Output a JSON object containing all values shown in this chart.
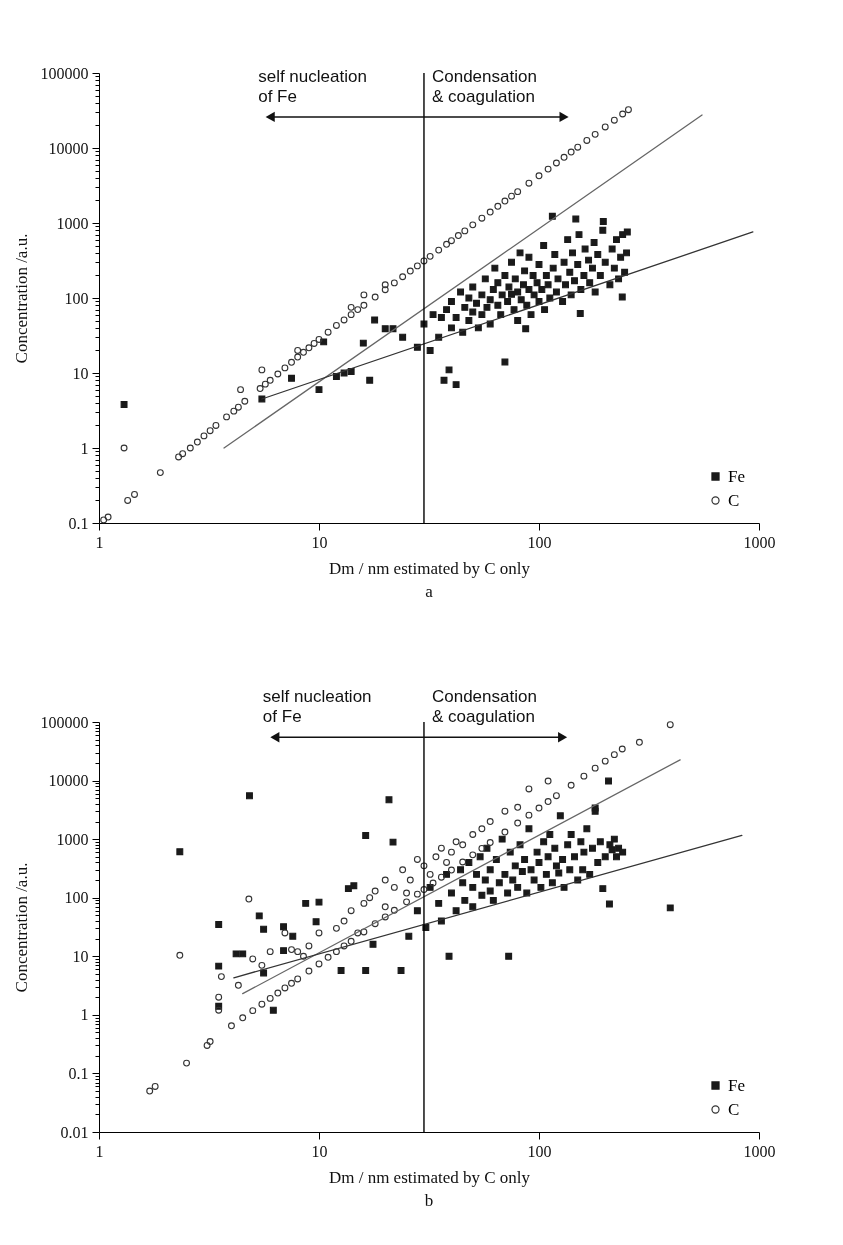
{
  "chart_data": [
    {
      "type": "scatter",
      "title": "a",
      "xlabel": "Dm / nm estimated by C only",
      "ylabel": "Concentration /a.u.",
      "log": "xy",
      "legend": "bottom right",
      "xlim": [
        1,
        1000
      ],
      "ylim": [
        0.1,
        100000
      ],
      "xticks": [
        1,
        10,
        100,
        1000
      ],
      "yticks": [
        0.1,
        {
          "value": 0.2,
          "label": null
        },
        {
          "value": 0.3,
          "label": null
        },
        {
          "value": 0.4,
          "label": null
        },
        {
          "value": 0.5,
          "label": null
        },
        {
          "value": 0.6,
          "label": null
        },
        {
          "value": 0.7,
          "label": null
        },
        {
          "value": 0.8,
          "label": null
        },
        {
          "value": 0.9,
          "label": null
        },
        1,
        {
          "value": 2,
          "label": null
        },
        {
          "value": 3,
          "label": null
        },
        {
          "value": 4,
          "label": null
        },
        {
          "value": 5,
          "label": null
        },
        {
          "value": 6,
          "label": null
        },
        {
          "value": 7,
          "label": null
        },
        {
          "value": 8,
          "label": null
        },
        {
          "value": 9,
          "label": null
        },
        10,
        {
          "value": 20,
          "label": null
        },
        {
          "value": 30,
          "label": null
        },
        {
          "value": 40,
          "label": null
        },
        {
          "value": 50,
          "label": null
        },
        {
          "value": 60,
          "label": null
        },
        {
          "value": 70,
          "label": null
        },
        {
          "value": 80,
          "label": null
        },
        {
          "value": 90,
          "label": null
        },
        100,
        {
          "value": 200,
          "label": null
        },
        {
          "value": 300,
          "label": null
        },
        {
          "value": 400,
          "label": null
        },
        {
          "value": 500,
          "label": null
        },
        {
          "value": 600,
          "label": null
        },
        {
          "value": 700,
          "label": null
        },
        {
          "value": 800,
          "label": null
        },
        {
          "value": 900,
          "label": null
        },
        1000,
        {
          "value": 2000,
          "label": null
        },
        {
          "value": 3000,
          "label": null
        },
        {
          "value": 4000,
          "label": null
        },
        {
          "value": 5000,
          "label": null
        },
        {
          "value": 6000,
          "label": null
        },
        {
          "value": 7000,
          "label": null
        },
        {
          "value": 8000,
          "label": null
        },
        {
          "value": 9000,
          "label": null
        },
        10000,
        {
          "value": 20000,
          "label": null
        },
        {
          "value": 30000,
          "label": null
        },
        {
          "value": 40000,
          "label": null
        },
        {
          "value": 50000,
          "label": null
        },
        {
          "value": 60000,
          "label": null
        },
        {
          "value": 70000,
          "label": null
        },
        {
          "value": 80000,
          "label": null
        },
        {
          "value": 90000,
          "label": null
        },
        100000
      ],
      "ref_lines": [
        {
          "axis": "x",
          "value": 30
        }
      ],
      "annotations": [
        {
          "text": "self nucleation\nof Fe",
          "x": 6,
          "y": 26000
        },
        {
          "text": "Condensation\n& coagulation",
          "x": 130,
          "y": 26000
        }
      ],
      "series": [
        {
          "name": "Fe",
          "color": "#1a1a1a",
          "marker": "square",
          "x": [
            1.3,
            5.5,
            7.5,
            10,
            10.5,
            12,
            13,
            14,
            15.9,
            17,
            17.9,
            20,
            21.7,
            24,
            28,
            30,
            32,
            33,
            35,
            36,
            37,
            38,
            39,
            40,
            40,
            42,
            42,
            44,
            45,
            46,
            48,
            48,
            50,
            50,
            52,
            53,
            55,
            55,
            57,
            58,
            60,
            60,
            62,
            63,
            65,
            65,
            67,
            68,
            70,
            70,
            72,
            73,
            75,
            75,
            77,
            78,
            80,
            80,
            82,
            83,
            85,
            86,
            87,
            88,
            90,
            90,
            92,
            94,
            95,
            98,
            100,
            100,
            103,
            105,
            106,
            108,
            110,
            112,
            115,
            116,
            118,
            120,
            122,
            128,
            130,
            132,
            135,
            138,
            140,
            142,
            145,
            147,
            150,
            152,
            154,
            155,
            160,
            162,
            168,
            170,
            175,
            178,
            180,
            185,
            190,
            195,
            196,
            200,
            210,
            215,
            220,
            225,
            230,
            235,
            239,
            240,
            245,
            250,
            252
          ],
          "values": [
            3.8,
            4.5,
            8.5,
            6,
            26,
            9,
            10,
            10.5,
            25,
            8,
            51,
            39,
            39,
            30,
            22,
            45,
            20,
            60,
            30,
            55,
            8,
            70,
            11,
            40,
            90,
            7,
            55,
            120,
            35,
            75,
            100,
            50,
            65,
            140,
            85,
            40,
            110,
            60,
            180,
            75,
            95,
            45,
            130,
            250,
            80,
            160,
            60,
            110,
            14,
            200,
            90,
            140,
            112,
            300,
            70,
            180,
            120,
            50,
            400,
            95,
            150,
            230,
            39,
            80,
            130,
            350,
            60,
            200,
            110,
            160,
            90,
            280,
            130,
            500,
            70,
            200,
            150,
            100,
            1230,
            250,
            380,
            120,
            180,
            90,
            300,
            150,
            600,
            220,
            110,
            400,
            170,
            1130,
            280,
            700,
            62,
            130,
            200,
            450,
            320,
            160,
            250,
            550,
            120,
            380,
            200,
            800,
            1050,
            300,
            150,
            450,
            250,
            600,
            180,
            350,
            103,
            700,
            220,
            400,
            760
          ]
        },
        {
          "name": "C",
          "color": "#333333",
          "marker": "circle",
          "x": [
            1.05,
            1.1,
            1.3,
            1.35,
            1.45,
            1.9,
            2.3,
            2.4,
            2.6,
            2.8,
            3.0,
            3.2,
            3.4,
            3.8,
            4.1,
            4.3,
            4.4,
            4.6,
            5.4,
            5.5,
            5.7,
            6,
            6.5,
            7,
            7.5,
            8,
            8,
            8.5,
            9,
            9.5,
            10,
            11,
            12,
            13,
            14,
            14,
            15,
            16,
            16,
            18,
            20,
            20,
            22,
            24,
            26,
            28,
            30,
            32,
            35,
            38,
            40,
            43,
            46,
            50,
            55,
            60,
            65,
            70,
            75,
            80,
            90,
            100,
            110,
            120,
            130,
            140,
            150,
            165,
            180,
            200,
            220,
            240,
            255
          ],
          "values": [
            0.11,
            0.12,
            1.0,
            0.2,
            0.24,
            0.47,
            0.76,
            0.84,
            1.0,
            1.2,
            1.45,
            1.7,
            2.0,
            2.6,
            3.1,
            3.5,
            6,
            4.2,
            6.2,
            11,
            7.1,
            8,
            9.7,
            11.7,
            13.9,
            16.3,
            20,
            18.9,
            21.7,
            24.8,
            28,
            35,
            43,
            51,
            60,
            75,
            70,
            80,
            110,
            103,
            129,
            150,
            159,
            192,
            229,
            268,
            312,
            359,
            435,
            520,
            581,
            680,
            785,
            945,
            1160,
            1400,
            1670,
            1960,
            2280,
            2620,
            3390,
            4260,
            5230,
            6310,
            7520,
            8830,
            10260,
            12600,
            15200,
            19100,
            23500,
            28400,
            32400
          ]
        },
        {
          "type": "line",
          "color": "#666666",
          "x": [
            3.7,
            551
          ],
          "values": [
            1,
            27500
          ]
        },
        {
          "type": "line",
          "color": "#333333",
          "x": [
            5.5,
            938
          ],
          "values": [
            4.5,
            760
          ]
        }
      ]
    },
    {
      "type": "scatter",
      "title": "b",
      "xlabel": "Dm / nm estimated by C only",
      "ylabel": "Concentration /a.u.",
      "log": "xy",
      "legend": "bottom right",
      "xlim": [
        1,
        1000
      ],
      "ylim": [
        0.01,
        100000
      ],
      "xticks": [
        1,
        10,
        100,
        1000
      ],
      "yticks": [
        0.01,
        {
          "value": 0.02,
          "label": null
        },
        {
          "value": 0.03,
          "label": null
        },
        {
          "value": 0.04,
          "label": null
        },
        {
          "value": 0.05,
          "label": null
        },
        {
          "value": 0.06,
          "label": null
        },
        {
          "value": 0.07,
          "label": null
        },
        {
          "value": 0.08,
          "label": null
        },
        {
          "value": 0.09,
          "label": null
        },
        0.1,
        {
          "value": 0.2,
          "label": null
        },
        {
          "value": 0.3,
          "label": null
        },
        {
          "value": 0.4,
          "label": null
        },
        {
          "value": 0.5,
          "label": null
        },
        {
          "value": 0.6,
          "label": null
        },
        {
          "value": 0.7,
          "label": null
        },
        {
          "value": 0.8,
          "label": null
        },
        {
          "value": 0.9,
          "label": null
        },
        1,
        {
          "value": 2,
          "label": null
        },
        {
          "value": 3,
          "label": null
        },
        {
          "value": 4,
          "label": null
        },
        {
          "value": 5,
          "label": null
        },
        {
          "value": 6,
          "label": null
        },
        {
          "value": 7,
          "label": null
        },
        {
          "value": 8,
          "label": null
        },
        {
          "value": 9,
          "label": null
        },
        10,
        {
          "value": 20,
          "label": null
        },
        {
          "value": 30,
          "label": null
        },
        {
          "value": 40,
          "label": null
        },
        {
          "value": 50,
          "label": null
        },
        {
          "value": 60,
          "label": null
        },
        {
          "value": 70,
          "label": null
        },
        {
          "value": 80,
          "label": null
        },
        {
          "value": 90,
          "label": null
        },
        100,
        {
          "value": 200,
          "label": null
        },
        {
          "value": 300,
          "label": null
        },
        {
          "value": 400,
          "label": null
        },
        {
          "value": 500,
          "label": null
        },
        {
          "value": 600,
          "label": null
        },
        {
          "value": 700,
          "label": null
        },
        {
          "value": 800,
          "label": null
        },
        {
          "value": 900,
          "label": null
        },
        1000,
        {
          "value": 2000,
          "label": null
        },
        {
          "value": 3000,
          "label": null
        },
        {
          "value": 4000,
          "label": null
        },
        {
          "value": 5000,
          "label": null
        },
        {
          "value": 6000,
          "label": null
        },
        {
          "value": 7000,
          "label": null
        },
        {
          "value": 8000,
          "label": null
        },
        {
          "value": 9000,
          "label": null
        },
        10000,
        {
          "value": 20000,
          "label": null
        },
        {
          "value": 30000,
          "label": null
        },
        {
          "value": 40000,
          "label": null
        },
        {
          "value": 50000,
          "label": null
        },
        {
          "value": 60000,
          "label": null
        },
        {
          "value": 70000,
          "label": null
        },
        {
          "value": 80000,
          "label": null
        },
        {
          "value": 90000,
          "label": null
        },
        100000
      ],
      "ref_lines": [
        {
          "axis": "x",
          "value": 30
        }
      ],
      "annotations": [
        {
          "text": "self nucleation\nof Fe",
          "x": 6.3,
          "y": 55000
        },
        {
          "text": "Condensation\n& coagulation",
          "x": 128,
          "y": 55000
        }
      ],
      "series": [
        {
          "name": "Fe",
          "color": "#1a1a1a",
          "marker": "square",
          "x": [
            2.33,
            3.5,
            3.5,
            3.5,
            4.2,
            4.5,
            4.83,
            5.35,
            5.6,
            5.6,
            6.2,
            6.9,
            6.9,
            7.6,
            8.7,
            9.7,
            10,
            12.6,
            13.6,
            14.4,
            16.3,
            16.3,
            17.6,
            20.8,
            21.7,
            23.6,
            25.6,
            28,
            30.6,
            32,
            35,
            36,
            38,
            39,
            40,
            42,
            44,
            45,
            46,
            48,
            50,
            50,
            52,
            54,
            55,
            57,
            58,
            60,
            60,
            62,
            64,
            66,
            68,
            70,
            72,
            72.8,
            74,
            76,
            78,
            80,
            82,
            84,
            86,
            88,
            90,
            92,
            95,
            98,
            100,
            102,
            105,
            108,
            110,
            112,
            115,
            118,
            120,
            123,
            125,
            128,
            130,
            135,
            138,
            140,
            145,
            150,
            155,
            158,
            160,
            165,
            170,
            175,
            180,
            180,
            185,
            190,
            195,
            200,
            207,
            209,
            210,
            215,
            220,
            225,
            230,
            240,
            395
          ],
          "values": [
            610,
            35,
            6.8,
            1.4,
            11,
            11,
            5500,
            49,
            29,
            5.2,
            1.2,
            32,
            12.5,
            22,
            80,
            39,
            84,
            5.7,
            143,
            160,
            1150,
            5.7,
            16,
            4700,
            890,
            5.7,
            22,
            60,
            31,
            150,
            80,
            40,
            250,
            10,
            120,
            60,
            300,
            180,
            90,
            400,
            150,
            70,
            250,
            500,
            110,
            200,
            700,
            130,
            300,
            90,
            450,
            180,
            1000,
            250,
            120,
            10,
            600,
            200,
            350,
            150,
            800,
            280,
            450,
            120,
            1500,
            300,
            200,
            600,
            400,
            150,
            900,
            250,
            500,
            1200,
            180,
            700,
            350,
            265,
            2500,
            450,
            150,
            800,
            300,
            1200,
            500,
            200,
            900,
            300,
            600,
            1500,
            250,
            700,
            3000,
            3400,
            400,
            900,
            143,
            500,
            9800,
            78,
            800,
            660,
            1000,
            500,
            700,
            600,
            67
          ]
        },
        {
          "name": "C",
          "color": "#333333",
          "marker": "circle",
          "x": [
            1.7,
            1.8,
            2.33,
            2.5,
            3.1,
            3.2,
            3.5,
            3.5,
            3.6,
            4,
            4.3,
            4.5,
            4.8,
            5,
            5,
            5.5,
            5.5,
            6,
            6,
            6.5,
            7,
            7,
            7.5,
            7.5,
            8,
            8,
            8.5,
            9,
            9,
            10,
            10,
            11,
            12,
            12,
            13,
            13,
            14,
            14,
            15,
            16,
            16,
            17,
            18,
            18,
            20,
            20,
            20,
            22,
            22,
            24,
            25,
            25,
            26,
            28,
            28,
            30,
            30,
            32,
            33,
            34,
            36,
            36,
            38,
            40,
            40,
            42,
            45,
            45,
            50,
            50,
            55,
            55,
            60,
            60,
            70,
            70,
            80,
            80,
            90,
            90,
            100,
            110,
            110,
            120,
            140,
            160,
            180,
            200,
            220,
            239,
            286,
            395
          ],
          "values": [
            0.05,
            0.06,
            10.4,
            0.15,
            0.3,
            0.35,
            1.2,
            2,
            4.5,
            0.65,
            3.2,
            0.89,
            95,
            1.18,
            9,
            1.52,
            7,
            1.91,
            12,
            2.36,
            2.88,
            25,
            3.46,
            13,
            4.1,
            12,
            10,
            5.6,
            15,
            7.4,
            25,
            9.6,
            12,
            30,
            15,
            40,
            18,
            60,
            25,
            26,
            80,
            100,
            36,
            130,
            47,
            70,
            200,
            61,
            150,
            300,
            85,
            120,
            200,
            115,
            450,
            138,
            350,
            250,
            178,
            500,
            224,
            700,
            400,
            297,
            600,
            900,
            407,
            800,
            539,
            1200,
            695,
            1500,
            875,
            2000,
            1320,
            3000,
            1880,
            3500,
            2570,
            7200,
            3400,
            4380,
            9800,
            5520,
            8320,
            11900,
            16300,
            21500,
            27700,
            34600,
            45000,
            90000
          ]
        },
        {
          "type": "line",
          "color": "#666666",
          "x": [
            4.5,
            438
          ],
          "values": [
            2.3,
            22600
          ]
        },
        {
          "type": "line",
          "color": "#333333",
          "x": [
            4.1,
            836
          ],
          "values": [
            4.3,
            1160
          ]
        }
      ]
    }
  ]
}
